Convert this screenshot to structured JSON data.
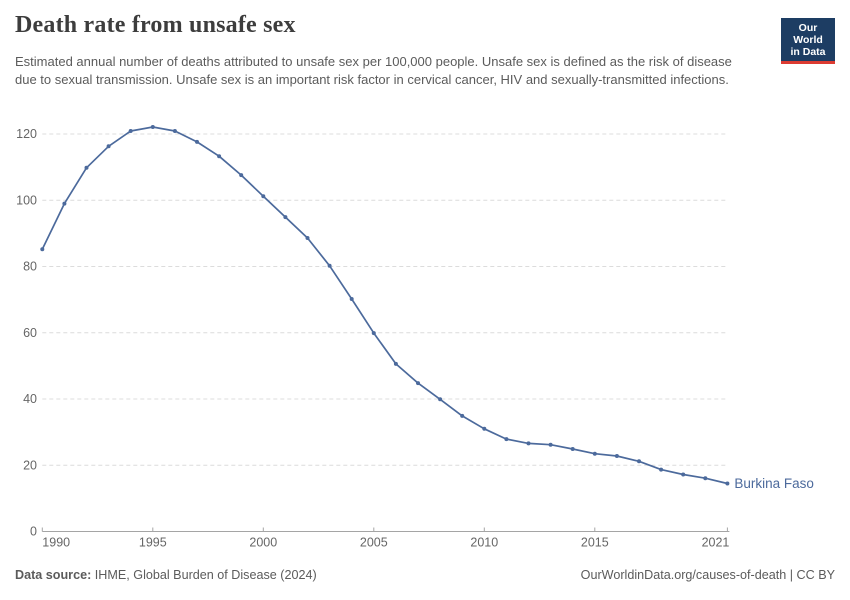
{
  "header": {
    "title": "Death rate from unsafe sex",
    "subtitle": "Estimated annual number of deaths attributed to unsafe sex per 100,000 people. Unsafe sex is defined as the risk of disease due to sexual transmission. Unsafe sex is an important risk factor in cervical cancer, HIV and sexually-transmitted infections.",
    "logo": {
      "line1": "Our World",
      "line2": "in Data",
      "bg_color": "#1d3d63",
      "accent_color": "#dc3b32"
    }
  },
  "chart_data": {
    "type": "line",
    "title": "Death rate from unsafe sex",
    "xlabel": "",
    "ylabel": "",
    "ylim": [
      0,
      120
    ],
    "y_ticks": [
      0,
      20,
      40,
      60,
      80,
      100,
      120
    ],
    "x_ticks": [
      1990,
      1995,
      2000,
      2005,
      2010,
      2015,
      2021
    ],
    "grid": "horizontal-dashed",
    "legend_position": "end-of-line-label",
    "x": [
      1990,
      1991,
      1992,
      1993,
      1994,
      1995,
      1996,
      1997,
      1998,
      1999,
      2000,
      2001,
      2002,
      2003,
      2004,
      2005,
      2006,
      2007,
      2008,
      2009,
      2010,
      2011,
      2012,
      2013,
      2014,
      2015,
      2016,
      2017,
      2018,
      2019,
      2020,
      2021
    ],
    "series": [
      {
        "name": "Burkina Faso",
        "color": "#4c6a9c",
        "values": [
          85.2,
          99.0,
          109.8,
          116.3,
          120.9,
          122.1,
          120.9,
          117.6,
          113.3,
          107.6,
          101.2,
          94.9,
          88.6,
          80.2,
          70.2,
          59.9,
          50.6,
          44.8,
          39.9,
          34.9,
          31.0,
          27.9,
          26.6,
          26.2,
          24.9,
          23.5,
          22.8,
          21.2,
          18.7,
          17.2,
          16.1,
          14.5
        ]
      }
    ]
  },
  "footer": {
    "source_label": "Data source:",
    "source_value": " IHME, Global Burden of Disease (2024)",
    "link": "OurWorldinData.org/causes-of-death | CC BY"
  }
}
